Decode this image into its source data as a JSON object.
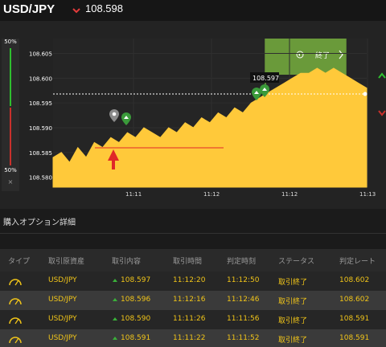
{
  "header": {
    "pair": "USD/JPY",
    "price": "108.598",
    "direction_icon": "down-arrow-icon",
    "down_color": "#e33b3b"
  },
  "sentiment": {
    "top": "50%",
    "bottom": "50%",
    "close": "×",
    "up_color": "#2fbf2f",
    "down_color": "#c9302c"
  },
  "chart": {
    "y_ticks": [
      "108.605",
      "108.600",
      "108.595",
      "108.590",
      "108.585",
      "108.580"
    ],
    "x_ticks": [
      "11:11",
      "11:12",
      "11:12",
      "11:13"
    ],
    "current_label": "108.597",
    "end_button": "終了",
    "accent": "#ffc93a",
    "end_zone_color": "#6a9a3a"
  },
  "chart_data": {
    "type": "area",
    "title": "",
    "xlabel": "",
    "ylabel": "",
    "ylim": [
      108.578,
      108.608
    ],
    "y": [
      108.584,
      108.585,
      108.583,
      108.586,
      108.584,
      108.587,
      108.586,
      108.588,
      108.587,
      108.589,
      108.588,
      108.59,
      108.589,
      108.588,
      108.59,
      108.589,
      108.591,
      108.59,
      108.592,
      108.591,
      108.593,
      108.592,
      108.594,
      108.593,
      108.595,
      108.596,
      108.597,
      108.598,
      108.599,
      108.6,
      108.601,
      108.601,
      108.602,
      108.601,
      108.602,
      108.601,
      108.6,
      108.599,
      108.598
    ]
  },
  "section": {
    "title": "購入オプション詳細"
  },
  "table": {
    "headers": [
      "タイプ",
      "取引原資産",
      "取引内容",
      "取引時間",
      "判定時刻",
      "ステータス",
      "判定レート"
    ],
    "rows": [
      {
        "asset": "USD/JPY",
        "content": "108.597",
        "time": "11:12:20",
        "judge": "11:12:50",
        "status": "取引終了",
        "rate": "108.602"
      },
      {
        "asset": "USD/JPY",
        "content": "108.596",
        "time": "11:12:16",
        "judge": "11:12:46",
        "status": "取引終了",
        "rate": "108.602"
      },
      {
        "asset": "USD/JPY",
        "content": "108.590",
        "time": "11:11:26",
        "judge": "11:11:56",
        "status": "取引終了",
        "rate": "108.591"
      },
      {
        "asset": "USD/JPY",
        "content": "108.591",
        "time": "11:11:22",
        "judge": "11:11:52",
        "status": "取引終了",
        "rate": "108.591"
      }
    ],
    "row_icon": "gauge-icon",
    "up_icon": "up-arrow-icon"
  }
}
